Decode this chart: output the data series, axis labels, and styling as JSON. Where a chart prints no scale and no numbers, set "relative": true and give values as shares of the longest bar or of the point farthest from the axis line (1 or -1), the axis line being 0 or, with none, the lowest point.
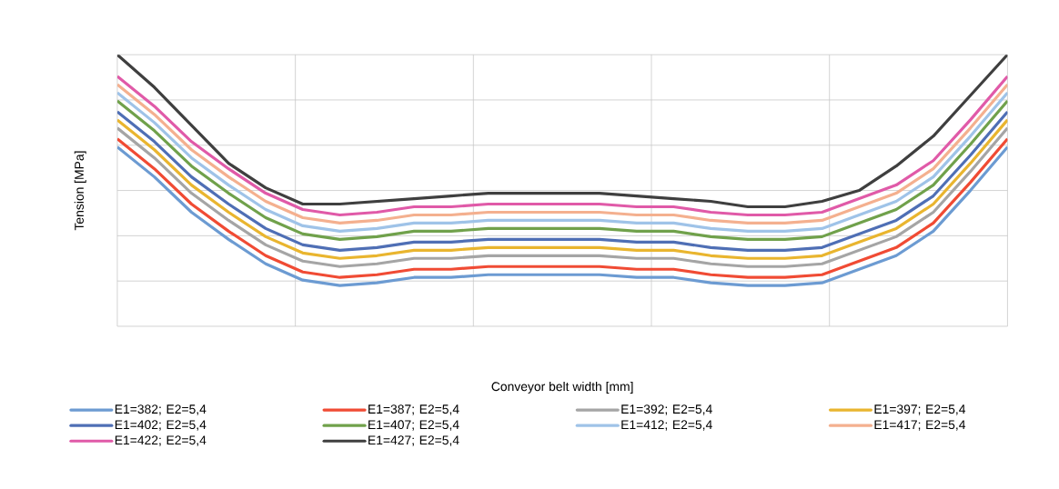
{
  "chart_data": {
    "type": "line",
    "relative": true,
    "xlabel": "Conveyor belt width [mm]",
    "ylabel": "Tension [MPa]",
    "grid": true,
    "legend": "bottom",
    "marker": "none",
    "line_style": "solid",
    "categories": [
      null,
      null,
      null,
      null,
      null,
      null,
      null,
      null,
      null,
      null,
      null,
      null,
      null,
      null,
      null,
      null,
      null,
      null,
      null,
      null,
      null,
      null,
      null,
      null,
      null
    ],
    "series": [
      {
        "name": "E1=382; E2=5,4",
        "color": "#6c9bd2",
        "values": [
          0.66,
          0.55,
          0.42,
          0.32,
          0.23,
          0.17,
          0.15,
          0.16,
          0.18,
          0.18,
          0.19,
          0.19,
          0.19,
          0.19,
          0.18,
          0.18,
          0.16,
          0.15,
          0.15,
          0.16,
          0.21,
          0.26,
          0.35,
          0.5,
          0.66
        ]
      },
      {
        "name": "E1=387; E2=5,4",
        "color": "#f04b34",
        "values": [
          0.69,
          0.58,
          0.45,
          0.35,
          0.26,
          0.2,
          0.18,
          0.19,
          0.21,
          0.21,
          0.22,
          0.22,
          0.22,
          0.22,
          0.21,
          0.21,
          0.19,
          0.18,
          0.18,
          0.19,
          0.24,
          0.29,
          0.38,
          0.53,
          0.69
        ]
      },
      {
        "name": "E1=392; E2=5,4",
        "color": "#a5a5a5",
        "values": [
          0.73,
          0.62,
          0.49,
          0.39,
          0.3,
          0.24,
          0.22,
          0.23,
          0.25,
          0.25,
          0.26,
          0.26,
          0.26,
          0.26,
          0.25,
          0.25,
          0.23,
          0.22,
          0.22,
          0.23,
          0.28,
          0.33,
          0.42,
          0.57,
          0.73
        ]
      },
      {
        "name": "E1=397; E2=5,4",
        "color": "#e9b52f",
        "values": [
          0.76,
          0.65,
          0.52,
          0.42,
          0.33,
          0.27,
          0.25,
          0.26,
          0.28,
          0.28,
          0.29,
          0.29,
          0.29,
          0.29,
          0.28,
          0.28,
          0.26,
          0.25,
          0.25,
          0.26,
          0.31,
          0.36,
          0.45,
          0.6,
          0.76
        ]
      },
      {
        "name": "E1=402; E2=5,4",
        "color": "#4f6fb5",
        "values": [
          0.79,
          0.68,
          0.55,
          0.45,
          0.36,
          0.3,
          0.28,
          0.29,
          0.31,
          0.31,
          0.32,
          0.32,
          0.32,
          0.32,
          0.31,
          0.31,
          0.29,
          0.28,
          0.28,
          0.29,
          0.34,
          0.39,
          0.48,
          0.63,
          0.79
        ]
      },
      {
        "name": "E1=407; E2=5,4",
        "color": "#70a14b",
        "values": [
          0.83,
          0.72,
          0.59,
          0.49,
          0.4,
          0.34,
          0.32,
          0.33,
          0.35,
          0.35,
          0.36,
          0.36,
          0.36,
          0.36,
          0.35,
          0.35,
          0.33,
          0.32,
          0.32,
          0.33,
          0.38,
          0.43,
          0.52,
          0.67,
          0.83
        ]
      },
      {
        "name": "E1=412; E2=5,4",
        "color": "#9fc3e8",
        "values": [
          0.86,
          0.75,
          0.62,
          0.52,
          0.43,
          0.37,
          0.35,
          0.36,
          0.38,
          0.38,
          0.39,
          0.39,
          0.39,
          0.39,
          0.38,
          0.38,
          0.36,
          0.35,
          0.35,
          0.36,
          0.41,
          0.46,
          0.55,
          0.7,
          0.86
        ]
      },
      {
        "name": "E1=417; E2=5,4",
        "color": "#f4b08f",
        "values": [
          0.89,
          0.78,
          0.65,
          0.55,
          0.46,
          0.4,
          0.38,
          0.39,
          0.41,
          0.41,
          0.42,
          0.42,
          0.42,
          0.42,
          0.41,
          0.41,
          0.39,
          0.38,
          0.38,
          0.39,
          0.44,
          0.49,
          0.58,
          0.73,
          0.89
        ]
      },
      {
        "name": "E1=422; E2=5,4",
        "color": "#e05aa8",
        "values": [
          0.92,
          0.81,
          0.68,
          0.58,
          0.49,
          0.43,
          0.41,
          0.42,
          0.44,
          0.44,
          0.45,
          0.45,
          0.45,
          0.45,
          0.44,
          0.44,
          0.42,
          0.41,
          0.41,
          0.42,
          0.47,
          0.52,
          0.61,
          0.76,
          0.92
        ]
      },
      {
        "name": "E1=427; E2=5,4",
        "color": "#3f3f3f",
        "values": [
          1,
          0.88,
          0.74,
          0.6,
          0.51,
          0.45,
          0.45,
          0.46,
          0.47,
          0.48,
          0.49,
          0.49,
          0.49,
          0.49,
          0.48,
          0.47,
          0.46,
          0.44,
          0.44,
          0.46,
          0.5,
          0.59,
          0.7,
          0.85,
          1
        ]
      }
    ]
  }
}
